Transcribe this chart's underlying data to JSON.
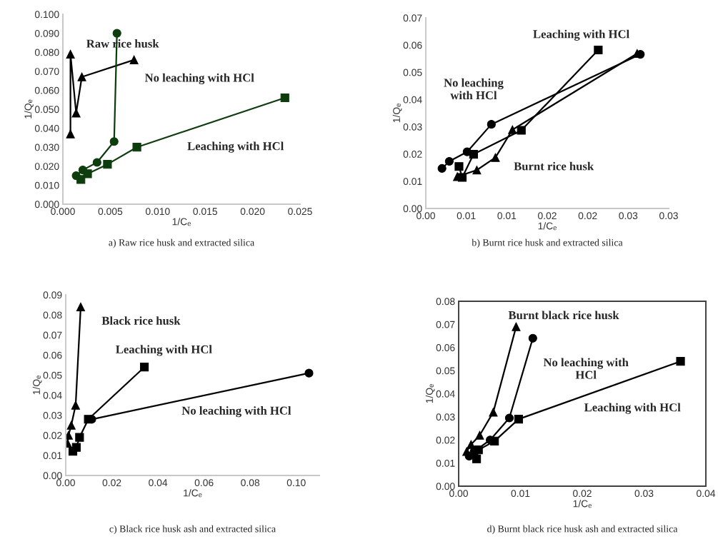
{
  "chart_data": [
    {
      "type": "line",
      "title": "a) Raw rice husk and extracted silica",
      "xlabel": "1/Cₑ",
      "ylabel": "1/Qₑ",
      "line_style": "solid",
      "xlim": [
        0,
        0.025
      ],
      "xticks": [
        {
          "value": 0,
          "label": "0.000"
        },
        {
          "value": 0.005,
          "label": "0.005"
        },
        {
          "value": 0.01,
          "label": "0.010"
        },
        {
          "value": 0.015,
          "label": "0.015"
        },
        {
          "value": 0.02,
          "label": "0.020"
        },
        {
          "value": 0.025,
          "label": "0.025"
        }
      ],
      "ylim": [
        0,
        0.1
      ],
      "yticks": [
        {
          "value": 0,
          "label": "0.000"
        },
        {
          "value": 0.01,
          "label": "0.010"
        },
        {
          "value": 0.02,
          "label": "0.020"
        },
        {
          "value": 0.03,
          "label": "0.030"
        },
        {
          "value": 0.04,
          "label": "0.040"
        },
        {
          "value": 0.05,
          "label": "0.050"
        },
        {
          "value": 0.06,
          "label": "0.060"
        },
        {
          "value": 0.07,
          "label": "0.070"
        },
        {
          "value": 0.08,
          "label": "0.080"
        },
        {
          "value": 0.09,
          "label": "0.090"
        },
        {
          "value": 0.1,
          "label": "0.100"
        }
      ],
      "series": [
        {
          "color": "#000000",
          "marker": "triangle",
          "x": [
            0.0008,
            0.0008,
            0.0014,
            0.002,
            0.0075
          ],
          "values": [
            0.037,
            0.079,
            0.048,
            0.067,
            0.076
          ]
        },
        {
          "color": "#0d3d0d",
          "marker": "circle",
          "x": [
            0.0014,
            0.0021,
            0.0036,
            0.0054,
            0.0057
          ],
          "values": [
            0.015,
            0.018,
            0.022,
            0.033,
            0.09
          ]
        },
        {
          "color": "#0d3d0d",
          "marker": "square",
          "x": [
            0.0019,
            0.0026,
            0.0047,
            0.0078,
            0.0234
          ],
          "values": [
            0.013,
            0.016,
            0.021,
            0.03,
            0.056
          ]
        }
      ],
      "annotations": [
        "Raw rice husk",
        "No leaching with HCl",
        "Leaching with HCl"
      ]
    },
    {
      "type": "line",
      "title": "b) Burnt rice husk and extracted silica",
      "xlabel": "1/Cₑ",
      "ylabel": "1/Qₑ",
      "line_style": "solid",
      "xlim": [
        0,
        0.03
      ],
      "xticks": [
        {
          "value": 0,
          "label": "0.00"
        },
        {
          "value": 0.005,
          "label": "0.01"
        },
        {
          "value": 0.01,
          "label": "0.01"
        },
        {
          "value": 0.015,
          "label": "0.02"
        },
        {
          "value": 0.02,
          "label": "0.02"
        },
        {
          "value": 0.025,
          "label": "0.03"
        },
        {
          "value": 0.03,
          "label": "0.03"
        }
      ],
      "ylim": [
        0,
        0.07
      ],
      "yticks": [
        {
          "value": 0,
          "label": "0.00"
        },
        {
          "value": 0.01,
          "label": "0.01"
        },
        {
          "value": 0.02,
          "label": "0.02"
        },
        {
          "value": 0.03,
          "label": "0.03"
        },
        {
          "value": 0.04,
          "label": "0.04"
        },
        {
          "value": 0.05,
          "label": "0.05"
        },
        {
          "value": 0.06,
          "label": "0.06"
        },
        {
          "value": 0.07,
          "label": "0.07"
        }
      ],
      "series": [
        {
          "color": "#000000",
          "marker": "circle",
          "x": [
            0.002,
            0.0029,
            0.0051,
            0.0081,
            0.0265
          ],
          "values": [
            0.0147,
            0.0173,
            0.0208,
            0.0309,
            0.0566
          ]
        },
        {
          "color": "#000000",
          "marker": "square",
          "x": [
            0.0041,
            0.0045,
            0.0059,
            0.0118,
            0.0213
          ],
          "values": [
            0.0154,
            0.0114,
            0.0199,
            0.0287,
            0.0582
          ]
        },
        {
          "color": "#000000",
          "marker": "triangle",
          "x": [
            0.0039,
            0.0063,
            0.0086,
            0.0107,
            0.0261
          ],
          "values": [
            0.0117,
            0.0141,
            0.0187,
            0.0289,
            0.0569
          ]
        }
      ],
      "annotations": [
        "Leaching with HCl",
        "No leaching\nwith HCl",
        "Burnt rice husk"
      ]
    },
    {
      "type": "line",
      "title": "c) Black rice husk ash and extracted silica",
      "xlabel": "1/Cₑ",
      "ylabel": "1/Qₑ",
      "line_style": "solid",
      "xlim": [
        0,
        0.11
      ],
      "xticks": [
        {
          "value": 0,
          "label": "0.00"
        },
        {
          "value": 0.02,
          "label": "0.02"
        },
        {
          "value": 0.04,
          "label": "0.04"
        },
        {
          "value": 0.06,
          "label": "0.06"
        },
        {
          "value": 0.08,
          "label": "0.08"
        },
        {
          "value": 0.1,
          "label": "0.10"
        }
      ],
      "ylim": [
        0,
        0.09
      ],
      "yticks": [
        {
          "value": 0,
          "label": "0.00"
        },
        {
          "value": 0.01,
          "label": "0.01"
        },
        {
          "value": 0.02,
          "label": "0.02"
        },
        {
          "value": 0.03,
          "label": "0.03"
        },
        {
          "value": 0.04,
          "label": "0.04"
        },
        {
          "value": 0.05,
          "label": "0.05"
        },
        {
          "value": 0.06,
          "label": "0.06"
        },
        {
          "value": 0.07,
          "label": "0.07"
        },
        {
          "value": 0.08,
          "label": "0.08"
        },
        {
          "value": 0.09,
          "label": "0.09"
        }
      ],
      "series": [
        {
          "color": "#000000",
          "marker": "triangle",
          "x": [
            0.0008,
            0.0012,
            0.0024,
            0.0043,
            0.0065
          ],
          "values": [
            0.016,
            0.02,
            0.025,
            0.035,
            0.084
          ]
        },
        {
          "color": "#000000",
          "marker": "square",
          "x": [
            0.0031,
            0.0046,
            0.006,
            0.0098,
            0.0341
          ],
          "values": [
            0.012,
            0.014,
            0.019,
            0.028,
            0.054
          ]
        },
        {
          "color": "#000000",
          "marker": "circle",
          "x": [
            0.0113,
            0.1055
          ],
          "values": [
            0.028,
            0.051
          ]
        }
      ],
      "annotations": [
        "Black rice husk",
        "Leaching with HCl",
        "No leaching with HCl"
      ]
    },
    {
      "type": "line",
      "title": "d) Burnt black rice husk ash and extracted silica",
      "xlabel": "1/Cₑ",
      "ylabel": "1/Qₑ",
      "line_style": "solid",
      "xlim": [
        0,
        0.04
      ],
      "xticks": [
        {
          "value": 0,
          "label": "0.00"
        },
        {
          "value": 0.01,
          "label": "0.01"
        },
        {
          "value": 0.02,
          "label": "0.02"
        },
        {
          "value": 0.03,
          "label": "0.03"
        },
        {
          "value": 0.04,
          "label": "0.04"
        }
      ],
      "ylim": [
        0,
        0.08
      ],
      "yticks": [
        {
          "value": 0,
          "label": "0.00"
        },
        {
          "value": 0.01,
          "label": "0.01"
        },
        {
          "value": 0.02,
          "label": "0.02"
        },
        {
          "value": 0.03,
          "label": "0.03"
        },
        {
          "value": 0.04,
          "label": "0.04"
        },
        {
          "value": 0.05,
          "label": "0.05"
        },
        {
          "value": 0.06,
          "label": "0.06"
        },
        {
          "value": 0.07,
          "label": "0.07"
        },
        {
          "value": 0.08,
          "label": "0.08"
        }
      ],
      "series": [
        {
          "color": "#000000",
          "marker": "triangle",
          "x": [
            0.0013,
            0.002,
            0.0034,
            0.0056,
            0.0093
          ],
          "values": [
            0.015,
            0.018,
            0.022,
            0.032,
            0.069
          ]
        },
        {
          "color": "#000000",
          "marker": "circle",
          "x": [
            0.0017,
            0.0025,
            0.0051,
            0.0082,
            0.012
          ],
          "values": [
            0.013,
            0.015,
            0.02,
            0.0295,
            0.064
          ]
        },
        {
          "color": "#000000",
          "marker": "square",
          "x": [
            0.0029,
            0.0032,
            0.0058,
            0.0097,
            0.0359
          ],
          "values": [
            0.0118,
            0.0157,
            0.0195,
            0.029,
            0.054
          ]
        }
      ],
      "annotations": [
        "Burnt black rice husk",
        "No leaching with\nHCl",
        "Leaching with HCl"
      ]
    }
  ]
}
